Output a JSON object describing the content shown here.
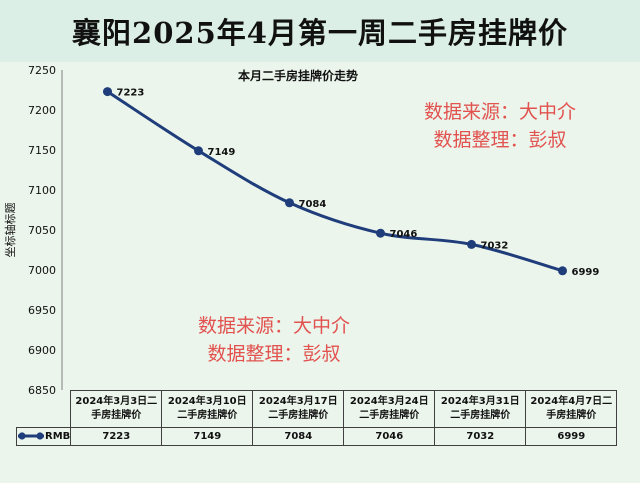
{
  "banner": {
    "title": "襄阳2025年4月第一周二手房挂牌价"
  },
  "chart_data": {
    "type": "line",
    "title": "本月二手房挂牌价走势",
    "ylabel": "坐标轴标题",
    "xlabel": "",
    "ylim": [
      6850,
      7250
    ],
    "yticks": [
      6850,
      6900,
      6950,
      7000,
      7050,
      7100,
      7150,
      7200,
      7250
    ],
    "categories": [
      "2024年3月3日二手房挂牌价",
      "2024年3月10日二手房挂牌价",
      "2024年3月17日二手房挂牌价",
      "2024年3月24日二手房挂牌价",
      "2024年3月31日二手房挂牌价",
      "2024年4月7日二手房挂牌价"
    ],
    "category_lines": [
      [
        "2024年3月3日二",
        "手房挂牌价"
      ],
      [
        "2024年3月10日",
        "二手房挂牌价"
      ],
      [
        "2024年3月17日",
        "二手房挂牌价"
      ],
      [
        "2024年3月24日",
        "二手房挂牌价"
      ],
      [
        "2024年3月31日",
        "二手房挂牌价"
      ],
      [
        "2024年4月7日二",
        "手房挂牌价"
      ]
    ],
    "series": [
      {
        "name": "RMB",
        "values": [
          7223,
          7149,
          7084,
          7046,
          7032,
          6999
        ],
        "color": "#1f3d7a"
      }
    ],
    "data_labels": [
      "7223",
      "7149",
      "7084",
      "7046",
      "7032",
      "6999"
    ],
    "grid": false,
    "data_table": true,
    "smooth": true
  },
  "watermarks": {
    "top": {
      "line1": "数据来源：大中介",
      "line2": "数据整理：彭叔"
    },
    "middle": {
      "line1": "数据来源：大中介",
      "line2": "数据整理：彭叔"
    },
    "color": "#e2524f"
  },
  "colors": {
    "banner_bg": "#dcefe6",
    "chart_bg": "#ebf5ec",
    "series": "#1f3d7a"
  }
}
